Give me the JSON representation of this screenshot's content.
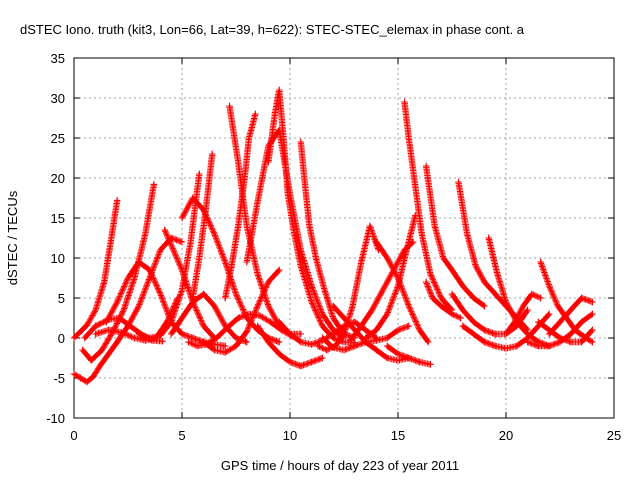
{
  "chart_data": {
    "type": "scatter",
    "title": "dSTEC Iono. truth (kit3, Lon=66, Lat=39, h=622): STEC-STEC_elemax in phase cont. a",
    "xlabel": "GPS time / hours of day 223 of year 2011",
    "ylabel": "dSTEC  / TECUs",
    "xlim": [
      0,
      25
    ],
    "ylim": [
      -10,
      35
    ],
    "xticks": [
      0,
      5,
      10,
      15,
      20,
      25
    ],
    "yticks": [
      -10,
      -5,
      0,
      5,
      10,
      15,
      20,
      25,
      30,
      35
    ],
    "grid": true,
    "marker": "+",
    "color": "#ff0000",
    "series": [
      {
        "x": [
          0.0,
          0.3,
          0.6,
          1.0,
          1.4,
          1.7,
          2.0
        ],
        "y": [
          0.0,
          0.8,
          1.6,
          3.5,
          7.0,
          12.0,
          17.2
        ]
      },
      {
        "x": [
          0.4,
          0.8,
          1.3,
          1.8,
          2.3,
          2.8,
          3.3,
          3.7
        ],
        "y": [
          -1.5,
          -2.8,
          -1.5,
          0.8,
          3.5,
          7.5,
          13.0,
          19.2
        ]
      },
      {
        "x": [
          0.0,
          0.3,
          0.6,
          0.9,
          1.2,
          1.6,
          2.0,
          2.5,
          3.0,
          3.5,
          4.0,
          4.5,
          5.0
        ],
        "y": [
          -4.5,
          -5.0,
          -5.5,
          -4.8,
          -3.5,
          -2.0,
          -0.5,
          1.5,
          4.0,
          7.5,
          11.0,
          12.5,
          12.0
        ]
      },
      {
        "x": [
          0.5,
          1.0,
          1.6,
          2.1,
          2.6,
          3.1,
          3.6,
          4.1
        ],
        "y": [
          0.0,
          1.5,
          2.3,
          2.5,
          1.5,
          0.5,
          -0.3,
          -0.4
        ]
      },
      {
        "x": [
          1.0,
          1.6,
          2.2,
          2.8,
          3.3,
          3.8,
          4.3,
          4.8
        ],
        "y": [
          0.5,
          1.0,
          0.7,
          0.0,
          -0.3,
          0.0,
          2.0,
          5.0
        ]
      },
      {
        "x": [
          1.5,
          2.0,
          2.5,
          3.0,
          3.5,
          4.0,
          4.5,
          5.0,
          5.5,
          6.0,
          6.5,
          7.0
        ],
        "y": [
          2.0,
          4.5,
          7.5,
          9.5,
          8.5,
          5.5,
          2.0,
          0.5,
          0.0,
          -0.5,
          -0.8,
          -1.0
        ]
      },
      {
        "x": [
          3.0,
          3.5,
          4.0,
          4.5,
          5.0,
          5.4,
          5.8
        ],
        "y": [
          0.5,
          0.0,
          0.3,
          2.0,
          6.0,
          12.0,
          20.5
        ]
      },
      {
        "x": [
          4.2,
          4.6,
          5.0,
          5.5,
          6.0,
          6.5
        ],
        "y": [
          13.5,
          11.0,
          8.5,
          4.5,
          1.5,
          0.0
        ]
      },
      {
        "x": [
          5.0,
          5.5,
          6.0,
          6.5,
          7.0,
          7.5,
          8.0,
          8.5,
          9.0,
          9.5
        ],
        "y": [
          15.0,
          17.5,
          16.0,
          13.0,
          9.5,
          5.5,
          2.5,
          1.0,
          0.0,
          -0.5
        ]
      },
      {
        "x": [
          4.5,
          5.0,
          5.5,
          6.0,
          6.5,
          7.0,
          7.5,
          8.0
        ],
        "y": [
          0.5,
          2.5,
          4.5,
          5.5,
          4.0,
          1.5,
          0.0,
          -0.5
        ]
      },
      {
        "x": [
          5.3,
          5.7,
          6.1,
          6.6,
          7.1,
          7.6,
          8.1,
          8.6,
          9.1,
          9.6,
          10.1
        ],
        "y": [
          -0.5,
          -1.0,
          -0.8,
          0.0,
          1.3,
          2.5,
          3.0,
          2.8,
          2.0,
          1.0,
          0.2
        ]
      },
      {
        "x": [
          5.5,
          5.8,
          6.1,
          6.4
        ],
        "y": [
          5.0,
          10.0,
          16.0,
          23.0
        ]
      },
      {
        "x": [
          6.0,
          6.5,
          7.0,
          7.5,
          8.0,
          8.5,
          9.0,
          9.5
        ],
        "y": [
          -0.5,
          -1.5,
          -1.8,
          -1.0,
          0.8,
          4.0,
          7.0,
          8.5
        ]
      },
      {
        "x": [
          7.2,
          7.6,
          8.0,
          8.5,
          9.0,
          9.5,
          10.0,
          10.5
        ],
        "y": [
          29.0,
          22.0,
          14.0,
          8.0,
          4.0,
          1.5,
          0.5,
          0.5
        ]
      },
      {
        "x": [
          7.0,
          7.3,
          7.6,
          7.9,
          8.1,
          8.4
        ],
        "y": [
          5.0,
          9.0,
          14.0,
          20.0,
          25.0,
          28.0
        ]
      },
      {
        "x": [
          8.0,
          8.5,
          9.0,
          9.5,
          10.0,
          10.5,
          11.0,
          11.5,
          12.0,
          12.5
        ],
        "y": [
          9.5,
          17.0,
          24.0,
          26.0,
          18.0,
          11.0,
          6.5,
          3.0,
          1.0,
          0.0
        ]
      },
      {
        "x": [
          9.0,
          9.3,
          9.5,
          9.7,
          9.9,
          10.2,
          10.5,
          11.0,
          11.5,
          12.0,
          12.5,
          13.0
        ],
        "y": [
          22.0,
          28.0,
          31.0,
          25.0,
          18.0,
          13.0,
          9.0,
          4.5,
          1.5,
          0.0,
          -0.5,
          -0.6
        ]
      },
      {
        "x": [
          9.5,
          10.0,
          10.5,
          11.0,
          11.5,
          12.0,
          12.5,
          13.0,
          13.5,
          14.0
        ],
        "y": [
          2.0,
          0.5,
          -0.5,
          -0.8,
          -0.3,
          0.5,
          1.5,
          2.0,
          1.0,
          0.0
        ]
      },
      {
        "x": [
          8.5,
          9.0,
          9.5,
          10.0,
          10.5,
          11.0,
          11.5
        ],
        "y": [
          1.5,
          -0.5,
          -2.0,
          -3.0,
          -3.5,
          -3.0,
          -2.5
        ]
      },
      {
        "x": [
          10.5,
          10.7,
          10.9,
          11.2,
          11.6,
          12.0,
          12.5,
          13.0
        ],
        "y": [
          24.5,
          19.0,
          14.0,
          10.0,
          6.0,
          2.5,
          0.5,
          0.0
        ]
      },
      {
        "x": [
          11.3,
          11.7,
          12.1,
          12.5,
          12.9,
          13.3,
          13.7,
          14.1
        ],
        "y": [
          -1.0,
          -1.5,
          -1.0,
          0.5,
          4.0,
          9.5,
          14.0,
          11.0
        ]
      },
      {
        "x": [
          11.5,
          12.0,
          12.5,
          13.0,
          13.5,
          14.0,
          14.5,
          15.0,
          15.5
        ],
        "y": [
          0.0,
          -1.2,
          -1.5,
          -1.0,
          -0.5,
          -0.3,
          0.0,
          1.0,
          1.5
        ]
      },
      {
        "x": [
          12.0,
          12.5,
          13.0,
          13.5,
          14.0,
          14.5,
          15.0,
          15.5
        ],
        "y": [
          4.0,
          2.5,
          1.0,
          -0.5,
          -1.5,
          -2.5,
          -2.8,
          -2.5
        ]
      },
      {
        "x": [
          12.8,
          13.3,
          13.8,
          14.3,
          14.8,
          15.3,
          15.7
        ],
        "y": [
          -0.3,
          1.5,
          3.5,
          6.0,
          8.5,
          11.0,
          12.0
        ]
      },
      {
        "x": [
          13.5,
          14.0,
          14.5,
          15.0,
          15.4,
          15.8
        ],
        "y": [
          0.0,
          1.0,
          3.0,
          6.5,
          11.0,
          15.3
        ]
      },
      {
        "x": [
          14.0,
          14.5,
          15.0,
          15.5,
          16.0,
          16.4
        ],
        "y": [
          12.0,
          10.0,
          7.5,
          4.0,
          1.0,
          -0.5
        ]
      },
      {
        "x": [
          14.5,
          15.0,
          15.5,
          16.0,
          16.5
        ],
        "y": [
          -1.0,
          -2.0,
          -2.5,
          -3.0,
          -3.3
        ]
      },
      {
        "x": [
          15.3,
          15.5,
          15.8,
          16.1,
          16.5,
          17.0,
          17.5
        ],
        "y": [
          29.5,
          25.0,
          19.0,
          13.0,
          8.0,
          5.0,
          3.5
        ]
      },
      {
        "x": [
          16.3,
          16.7,
          17.1,
          17.5,
          18.0,
          18.5,
          19.0
        ],
        "y": [
          21.5,
          14.0,
          10.0,
          8.5,
          6.5,
          5.0,
          4.0
        ]
      },
      {
        "x": [
          16.3,
          16.6,
          17.0,
          17.5,
          17.9
        ],
        "y": [
          7.0,
          5.0,
          4.0,
          3.0,
          2.5
        ]
      },
      {
        "x": [
          17.8,
          18.2,
          18.6,
          19.0,
          19.5,
          20.0,
          20.5,
          21.0
        ],
        "y": [
          19.5,
          13.0,
          9.0,
          7.0,
          5.5,
          4.0,
          2.5,
          1.0
        ]
      },
      {
        "x": [
          17.5,
          18.0,
          18.5,
          19.0,
          19.5,
          20.0,
          20.5,
          21.0
        ],
        "y": [
          5.5,
          3.5,
          2.0,
          1.0,
          0.5,
          0.5,
          1.5,
          3.5
        ]
      },
      {
        "x": [
          18.0,
          18.5,
          19.0,
          19.5,
          20.0,
          20.5,
          21.0,
          21.5,
          22.0
        ],
        "y": [
          1.5,
          0.5,
          -0.5,
          -1.0,
          -1.3,
          -1.0,
          0.0,
          1.5,
          3.0
        ]
      },
      {
        "x": [
          19.2,
          19.6,
          20.0,
          20.5,
          21.0,
          21.5,
          22.0
        ],
        "y": [
          12.5,
          8.0,
          4.5,
          2.0,
          0.5,
          -0.5,
          -1.0
        ]
      },
      {
        "x": [
          20.0,
          20.4,
          20.8,
          21.2,
          21.6
        ],
        "y": [
          0.5,
          2.0,
          4.0,
          5.5,
          5.0
        ]
      },
      {
        "x": [
          21.6,
          22.0,
          22.4,
          22.8,
          23.2,
          23.7,
          24.0
        ],
        "y": [
          9.5,
          6.5,
          4.0,
          2.5,
          1.0,
          0.0,
          -0.5
        ]
      },
      {
        "x": [
          21.0,
          21.5,
          22.0,
          22.5,
          23.0,
          23.5,
          24.0
        ],
        "y": [
          -0.5,
          -1.0,
          -1.0,
          -0.5,
          0.5,
          2.0,
          3.0
        ]
      },
      {
        "x": [
          21.5,
          22.0,
          22.5,
          23.0,
          23.5,
          24.0
        ],
        "y": [
          2.0,
          1.0,
          0.0,
          -0.5,
          -0.5,
          1.0
        ]
      },
      {
        "x": [
          22.0,
          22.5,
          23.0,
          23.5,
          24.0
        ],
        "y": [
          0.5,
          2.0,
          3.5,
          5.0,
          4.5
        ]
      }
    ]
  }
}
